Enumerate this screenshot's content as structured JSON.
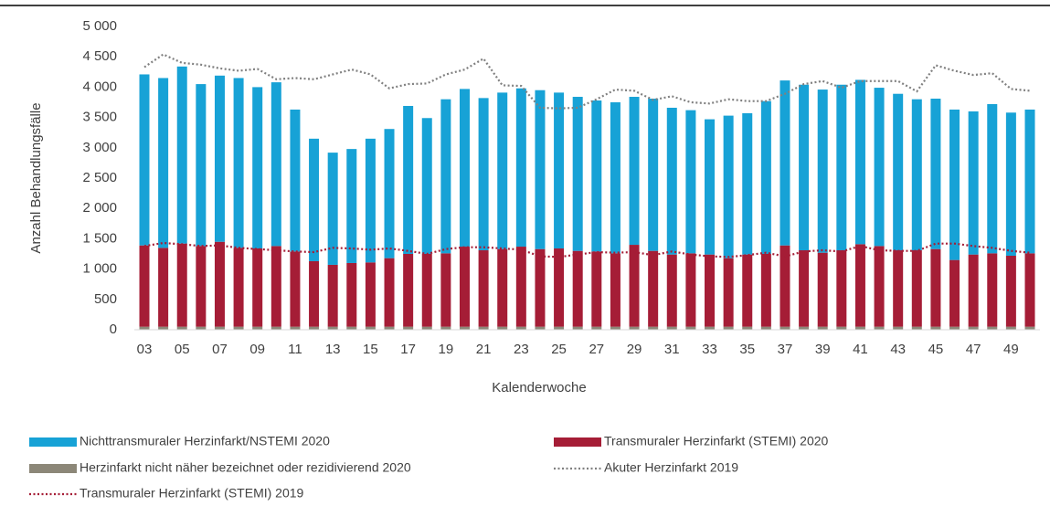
{
  "chart_data": {
    "type": "bar",
    "x_label": "Kalenderwoche",
    "y_label": "Anzahl Behandlungsfälle",
    "categories": [
      "03",
      null,
      "05",
      null,
      "07",
      null,
      "09",
      null,
      "11",
      null,
      "13",
      null,
      "15",
      null,
      "17",
      null,
      "19",
      null,
      "21",
      null,
      "23",
      null,
      "25",
      null,
      "27",
      null,
      "29",
      null,
      "31",
      null,
      "33",
      null,
      "35",
      null,
      "37",
      null,
      "39",
      null,
      "41",
      null,
      "43",
      null,
      "45",
      null,
      "47",
      null,
      "49",
      null
    ],
    "ylim": [
      0,
      5000
    ],
    "yticks": [
      0,
      500,
      {
        "value": 1000,
        "label": "1 000"
      },
      {
        "value": 1500,
        "label": "1 500"
      },
      {
        "value": 2000,
        "label": "2 000"
      },
      {
        "value": 2500,
        "label": "2 500"
      },
      {
        "value": 3000,
        "label": "3 000"
      },
      {
        "value": 3500,
        "label": "3 500"
      },
      {
        "value": 4000,
        "label": "4 000"
      },
      {
        "value": 4500,
        "label": "4 500"
      },
      {
        "value": 5000,
        "label": "5 000"
      }
    ],
    "series": [
      {
        "name": "Nichttransmuraler Herzinfarkt/NSTEMI 2020",
        "kind": "bar",
        "color": "#17a2d6",
        "values": [
          2820,
          2800,
          2920,
          2670,
          2740,
          2800,
          2660,
          2700,
          2340,
          2020,
          1850,
          1880,
          2040,
          2130,
          2440,
          2240,
          2540,
          2600,
          2510,
          2580,
          2610,
          2620,
          2570,
          2540,
          2490,
          2490,
          2440,
          2510,
          2420,
          2360,
          2230,
          2350,
          2330,
          2520,
          2720,
          2730,
          2690,
          2730,
          2710,
          2610,
          2580,
          2490,
          2480,
          2480,
          2360,
          2460,
          2360,
          2370
        ]
      },
      {
        "name": "Transmuraler Herzinfarkt (STEMI) 2020",
        "kind": "bar",
        "color": "#a51d36",
        "values": [
          1340,
          1300,
          1370,
          1330,
          1400,
          1300,
          1290,
          1330,
          1240,
          1080,
          1020,
          1050,
          1060,
          1130,
          1200,
          1200,
          1210,
          1320,
          1260,
          1280,
          1320,
          1280,
          1290,
          1250,
          1240,
          1210,
          1350,
          1250,
          1190,
          1210,
          1190,
          1130,
          1190,
          1200,
          1340,
          1260,
          1220,
          1260,
          1360,
          1330,
          1260,
          1260,
          1280,
          1100,
          1190,
          1210,
          1170,
          1210
        ]
      },
      {
        "name": "Herzinfarkt nicht näher bezeichnet oder rezidivierend 2020",
        "kind": "bar",
        "color": "#8c8778",
        "values": [
          50,
          50,
          50,
          50,
          50,
          50,
          50,
          50,
          50,
          50,
          50,
          50,
          50,
          50,
          50,
          50,
          50,
          50,
          50,
          50,
          50,
          50,
          50,
          50,
          50,
          50,
          50,
          50,
          50,
          50,
          50,
          50,
          50,
          50,
          50,
          50,
          50,
          50,
          50,
          50,
          50,
          50,
          50,
          50,
          50,
          50,
          50,
          50
        ]
      },
      {
        "name": "Akuter Herzinfarkt 2019",
        "kind": "line",
        "color": "#808080",
        "values": [
          4330,
          4540,
          4400,
          4370,
          4310,
          4270,
          4300,
          4130,
          4150,
          4130,
          4210,
          4290,
          4210,
          3980,
          4050,
          4060,
          4210,
          4290,
          4470,
          4030,
          4020,
          3660,
          3650,
          3660,
          3800,
          3960,
          3940,
          3790,
          3850,
          3750,
          3730,
          3800,
          3770,
          3770,
          3890,
          4050,
          4100,
          3990,
          4100,
          4100,
          4100,
          3930,
          4360,
          4270,
          4200,
          4230,
          3970,
          3940
        ]
      },
      {
        "name": "Transmuraler Herzinfarkt (STEMI) 2019",
        "kind": "line",
        "color": "#a51d36",
        "values": [
          1380,
          1430,
          1410,
          1380,
          1390,
          1350,
          1330,
          1310,
          1290,
          1280,
          1350,
          1340,
          1320,
          1340,
          1300,
          1250,
          1330,
          1360,
          1360,
          1340,
          1320,
          1210,
          1200,
          1240,
          1280,
          1270,
          1280,
          1230,
          1290,
          1240,
          1210,
          1200,
          1230,
          1270,
          1210,
          1290,
          1310,
          1290,
          1380,
          1310,
          1300,
          1300,
          1420,
          1420,
          1380,
          1350,
          1300,
          1270
        ]
      }
    ]
  }
}
